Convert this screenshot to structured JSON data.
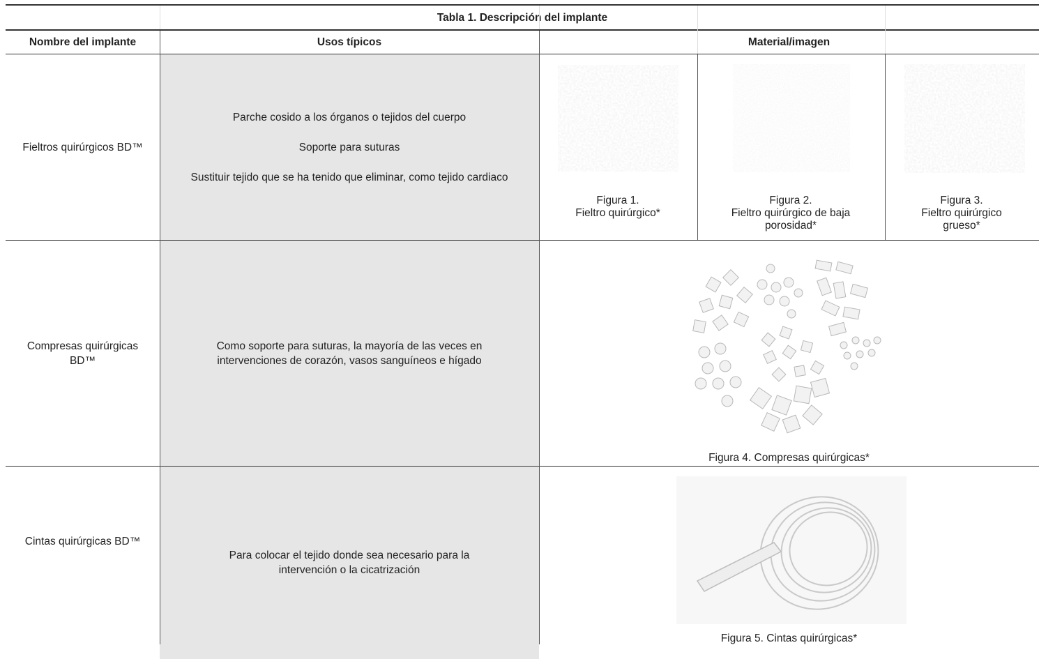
{
  "table": {
    "title": "Tabla 1. Descripción del implante",
    "header": [
      "Nombre del implante",
      "Usos típicos",
      "Material/imagen"
    ],
    "rows": [
      {
        "name": "Fieltros quirúrgicos BD™",
        "uses": [
          "Parche cosido a los órganos o tejidos del cuerpo",
          "Soporte para suturas",
          "Sustituir tejido que se ha tenido que eliminar, como tejido cardiaco"
        ],
        "figures": [
          {
            "number": "Figura 1.",
            "caption": "Fieltro quirúrgico*"
          },
          {
            "number": "Figura 2.",
            "caption": "Fieltro quirúrgico de baja porosidad*"
          },
          {
            "number": "Figura 3.",
            "caption": "Fieltro quirúrgico grueso*"
          }
        ]
      },
      {
        "name": "Compresas quirúrgicas BD™",
        "uses": [
          "Como soporte para suturas, la mayoría de las veces en intervenciones de corazón, vasos sanguíneos e hígado"
        ],
        "figures": [
          {
            "caption": "Figura 4. Compresas quirúrgicas*"
          }
        ]
      },
      {
        "name": "Cintas quirúrgicas BD™",
        "uses": [
          "Para colocar el tejido donde sea necesario para la intervención o la cicatrización"
        ],
        "figures": [
          {
            "caption": "Figura 5. Cintas quirúrgicas*"
          }
        ]
      }
    ]
  }
}
